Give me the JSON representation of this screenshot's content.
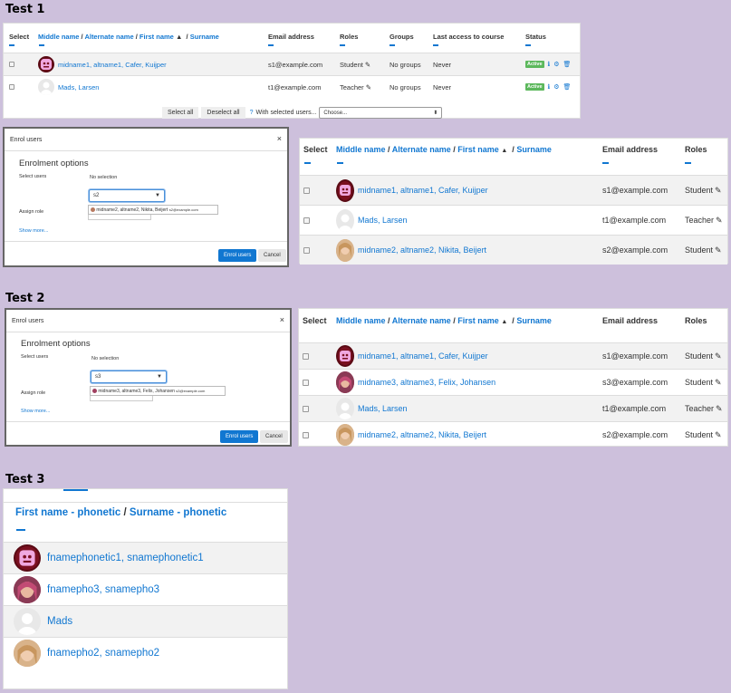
{
  "tests": {
    "t1": "Test 1",
    "t2": "Test 2",
    "t3": "Test 3"
  },
  "table": {
    "select": "Select",
    "middle": "Middle name",
    "alternate": "Alternate name",
    "first": "First name",
    "surname": "Surname",
    "email": "Email address",
    "roles": "Roles",
    "groups": "Groups",
    "last_access": "Last access to course",
    "status": "Status",
    "sep": "/",
    "sort_icon": "sort-ascending-icon"
  },
  "t1": {
    "rows": [
      {
        "name": "midname1, altname1, Cafer, Kuijper",
        "email": "s1@example.com",
        "role": "Student",
        "groups": "No groups",
        "access": "Never",
        "status": "Active"
      },
      {
        "name": "Mads, Larsen",
        "email": "t1@example.com",
        "role": "Teacher",
        "groups": "No groups",
        "access": "Never",
        "status": "Active"
      }
    ],
    "bulk": {
      "select_all": "Select all",
      "deselect_all": "Deselect all",
      "with_selected": "With selected users...",
      "choose": "Choose..."
    },
    "right_rows": [
      {
        "name": "midname1, altname1, Cafer, Kuijper",
        "email": "s1@example.com",
        "role": "Student"
      },
      {
        "name": "Mads, Larsen",
        "email": "t1@example.com",
        "role": "Teacher"
      },
      {
        "name": "midname2, altname2, Nikita, Beijert",
        "email": "s2@example.com",
        "role": "Student"
      }
    ]
  },
  "modal": {
    "title": "Enrol users",
    "section": "Enrolment options",
    "select_users": "Select users",
    "no_selection": "No selection",
    "assign_role": "Assign role",
    "show_more": "Show more...",
    "enrol": "Enrol users",
    "cancel": "Cancel",
    "close": "×"
  },
  "m1": {
    "input": "s2",
    "suggestion_name": "midname2, altname2, Nikita, Beijert",
    "suggestion_email": "s2@example.com"
  },
  "m2": {
    "input": "s3",
    "suggestion_name": "midname3, altname3, Felix, Johansen",
    "suggestion_email": "s3@example.com"
  },
  "t2": {
    "rows": [
      {
        "name": "midname1, altname1, Cafer, Kuijper",
        "email": "s1@example.com",
        "role": "Student"
      },
      {
        "name": "midname3, altname3, Felix, Johansen",
        "email": "s3@example.com",
        "role": "Student"
      },
      {
        "name": "Mads, Larsen",
        "email": "t1@example.com",
        "role": "Teacher"
      },
      {
        "name": "midname2, altname2, Nikita, Beijert",
        "email": "s2@example.com",
        "role": "Student"
      }
    ]
  },
  "t3": {
    "first_phonetic": "First name - phonetic",
    "surname_phonetic": "Surname - phonetic",
    "sep": "/",
    "rows": [
      {
        "name": "fnamephonetic1, snamephonetic1"
      },
      {
        "name": "fnamepho3, snamepho3"
      },
      {
        "name": "Mads"
      },
      {
        "name": "fnamepho2, snamepho2"
      }
    ]
  },
  "colors": {
    "link": "#1177d1",
    "active": "#5cb85c",
    "bg": "#cdc0dc"
  }
}
